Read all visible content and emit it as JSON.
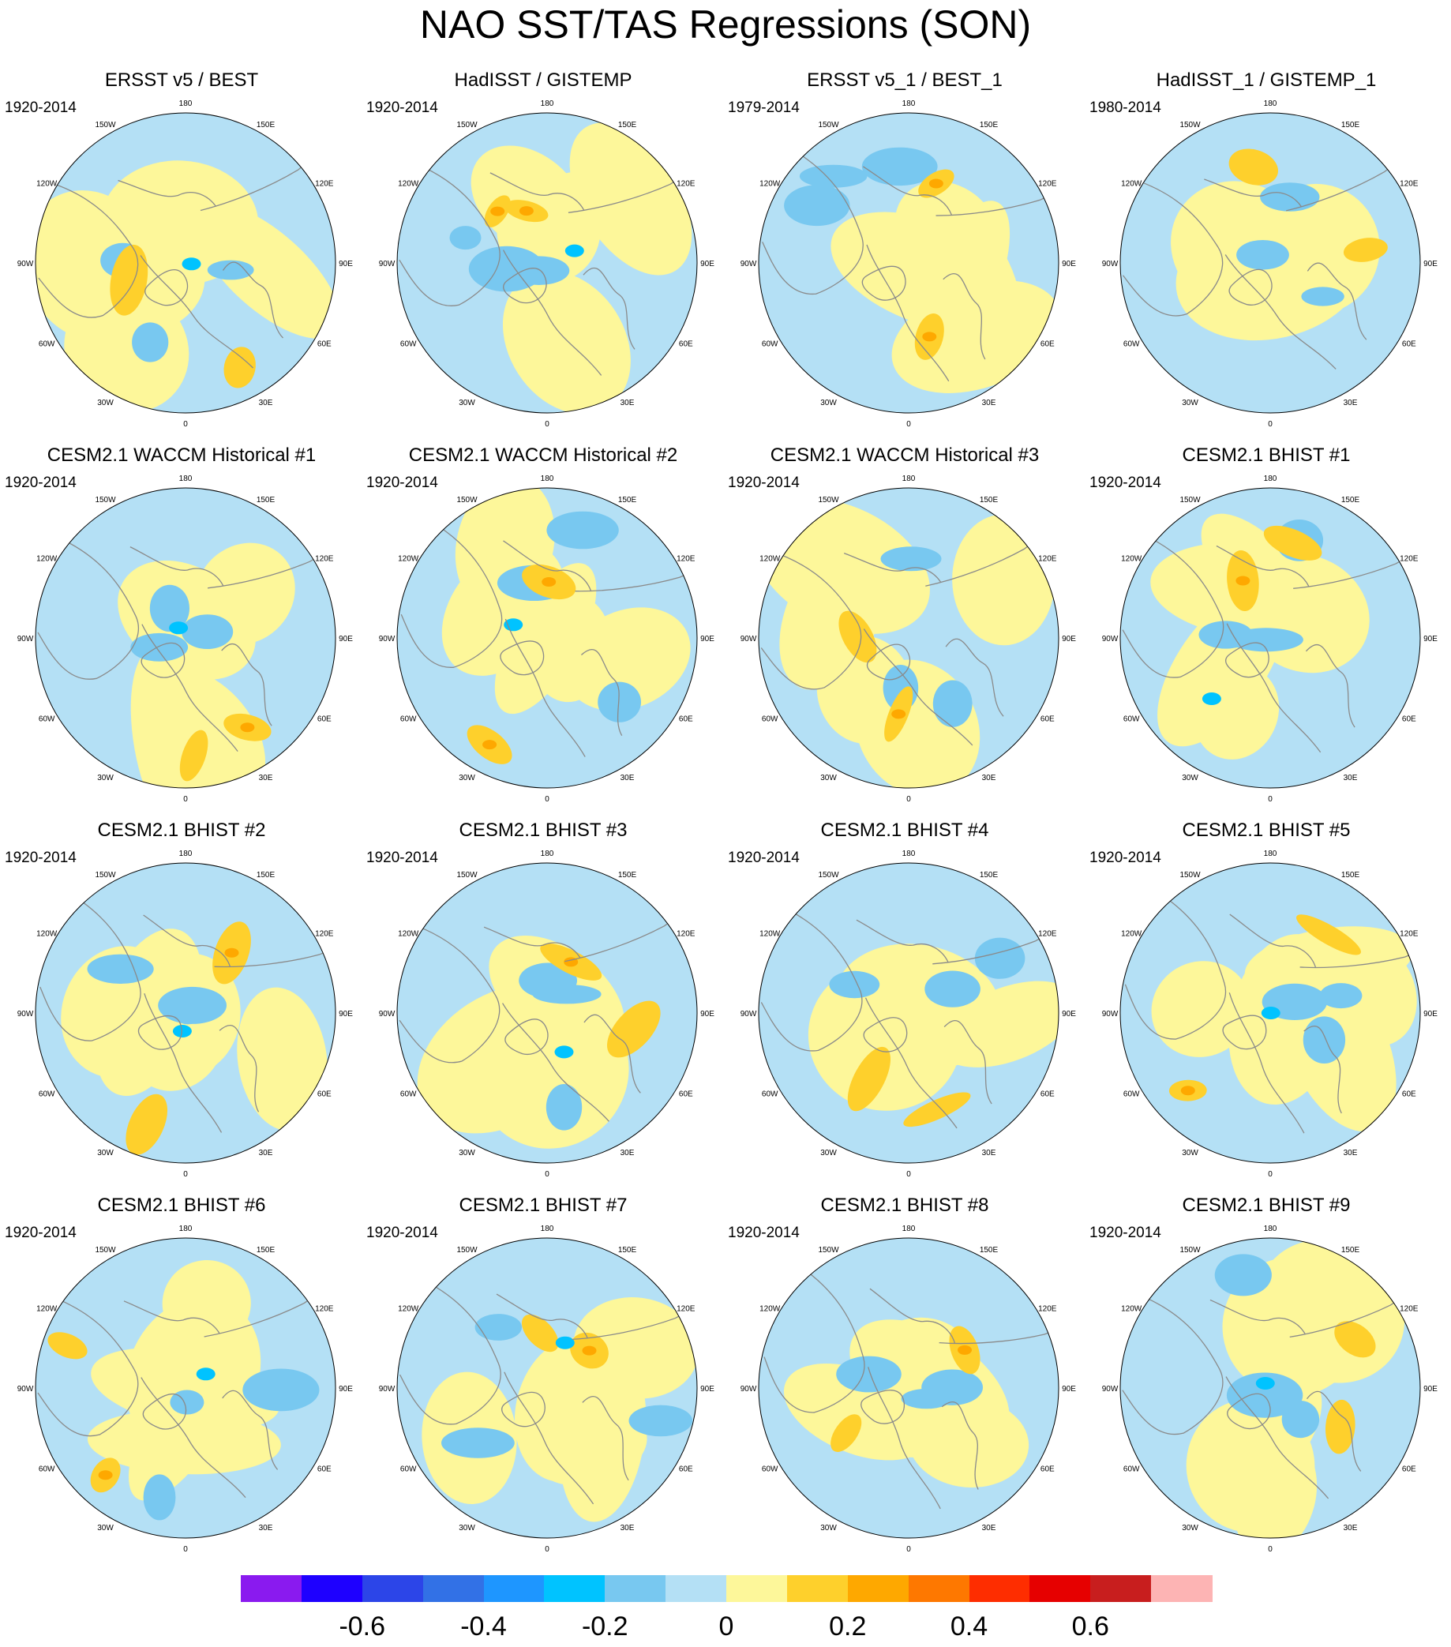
{
  "title": "NAO SST/TAS Regressions (SON)",
  "longitude_labels": [
    "180",
    "150E",
    "120E",
    "90E",
    "60E",
    "30E",
    "0",
    "30W",
    "60W",
    "90W",
    "120W",
    "150W"
  ],
  "colorbar": {
    "colors": [
      "#8a1aef",
      "#1e00ff",
      "#2c45e8",
      "#3271e6",
      "#1e96ff",
      "#00c3ff",
      "#78c8f0",
      "#b4e0f5",
      "#fdf79a",
      "#fed02c",
      "#fea800",
      "#fe7800",
      "#fe2d00",
      "#e60000",
      "#c81e1e",
      "#fdb4b4"
    ],
    "tick_labels": [
      "-0.6",
      "-0.4",
      "-0.2",
      "0",
      "0.2",
      "0.4",
      "0.6"
    ],
    "tick_values": [
      -0.6,
      -0.4,
      -0.2,
      0,
      0.2,
      0.4,
      0.6
    ],
    "contour_min": -0.7,
    "contour_interval": 0.1
  },
  "panels": [
    {
      "title": "ERSST v5 / BEST",
      "period": "1920-2014"
    },
    {
      "title": "HadISST / GISTEMP",
      "period": "1920-2014"
    },
    {
      "title": "ERSST v5_1 / BEST_1",
      "period": "1979-2014"
    },
    {
      "title": "HadISST_1 / GISTEMP_1",
      "period": "1980-2014"
    },
    {
      "title": "CESM2.1 WACCM Historical #1",
      "period": "1920-2014"
    },
    {
      "title": "CESM2.1 WACCM Historical #2",
      "period": "1920-2014"
    },
    {
      "title": "CESM2.1 WACCM Historical #3",
      "period": "1920-2014"
    },
    {
      "title": "CESM2.1 BHIST #1",
      "period": "1920-2014"
    },
    {
      "title": "CESM2.1 BHIST #2",
      "period": "1920-2014"
    },
    {
      "title": "CESM2.1 BHIST #3",
      "period": "1920-2014"
    },
    {
      "title": "CESM2.1 BHIST #4",
      "period": "1920-2014"
    },
    {
      "title": "CESM2.1 BHIST #5",
      "period": "1920-2014"
    },
    {
      "title": "CESM2.1 BHIST #6",
      "period": "1920-2014"
    },
    {
      "title": "CESM2.1 BHIST #7",
      "period": "1920-2014"
    },
    {
      "title": "CESM2.1 BHIST #8",
      "period": "1920-2014"
    },
    {
      "title": "CESM2.1 BHIST #9",
      "period": "1920-2014"
    }
  ]
}
